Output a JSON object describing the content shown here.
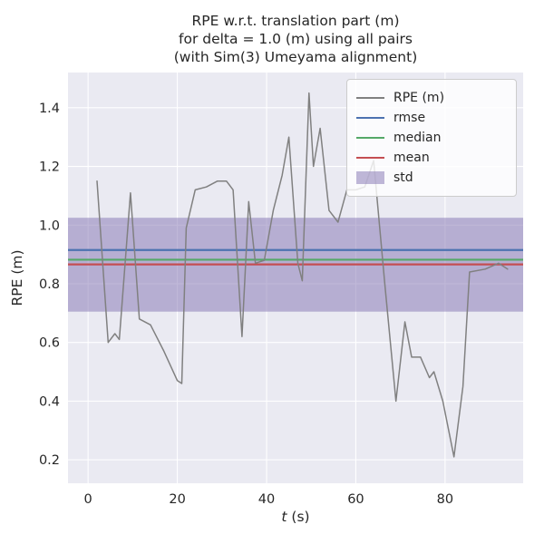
{
  "title": {
    "line1": "RPE w.r.t. translation part (m)",
    "line2": "for delta = 1.0 (m) using all pairs",
    "line3": "(with Sim(3) Umeyama alignment)"
  },
  "chart_data": {
    "type": "line",
    "title": "RPE w.r.t. translation part (m) for delta = 1.0 (m) using all pairs (with Sim(3) Umeyama alignment)",
    "xlabel_italic": "t",
    "xlabel_rest": " (s)",
    "ylabel": "RPE (m)",
    "xlim": [
      -4.5,
      97.5
    ],
    "ylim": [
      0.12,
      1.52
    ],
    "xticks": [
      0,
      20,
      40,
      60,
      80
    ],
    "yticks": [
      0.2,
      0.4,
      0.6,
      0.8,
      1.0,
      1.2,
      1.4
    ],
    "grid": true,
    "legend_position": "upper right",
    "colors": {
      "plot_bg": "#EAEAF2",
      "grid": "#FFFFFF",
      "text": "#262626",
      "rpe_line": "#808080",
      "rmse": "#4C72B0",
      "median": "#55A868",
      "mean": "#C44E52",
      "std": "#8172B2"
    },
    "series": [
      {
        "name": "RPE (m)",
        "color": "#808080",
        "x": [
          2,
          4.5,
          6,
          7,
          9.5,
          11.5,
          14,
          17,
          20,
          21,
          22,
          24,
          26.5,
          29,
          31,
          32.5,
          34.5,
          36,
          37.5,
          39.5,
          41.5,
          43.5,
          45,
          47,
          48,
          49.5,
          50.5,
          52,
          54,
          56,
          58,
          60,
          62,
          64,
          66.5,
          69,
          71,
          72.5,
          74.5,
          76.5,
          77.5,
          79.5,
          82,
          84,
          85.5,
          89,
          92,
          94
        ],
        "y": [
          1.15,
          0.6,
          0.63,
          0.61,
          1.11,
          0.68,
          0.66,
          0.57,
          0.47,
          0.46,
          0.99,
          1.12,
          1.13,
          1.15,
          1.15,
          1.12,
          0.62,
          1.08,
          0.87,
          0.88,
          1.05,
          1.17,
          1.3,
          0.87,
          0.81,
          1.45,
          1.2,
          1.33,
          1.05,
          1.01,
          1.12,
          1.12,
          1.13,
          1.22,
          0.8,
          0.4,
          0.67,
          0.55,
          0.55,
          0.48,
          0.5,
          0.4,
          0.21,
          0.45,
          0.84,
          0.85,
          0.87,
          0.85
        ]
      }
    ],
    "hlines": [
      {
        "name": "rmse",
        "color": "#4C72B0",
        "y": 0.915
      },
      {
        "name": "median",
        "color": "#55A868",
        "y": 0.882
      },
      {
        "name": "mean",
        "color": "#C44E52",
        "y": 0.866
      }
    ],
    "band": {
      "name": "std",
      "color": "#8172B2",
      "alpha": 0.5,
      "ymin": 0.705,
      "ymax": 1.025
    },
    "legend_items": [
      {
        "label": "RPE (m)",
        "type": "line",
        "color": "#808080",
        "alpha": 1
      },
      {
        "label": "rmse",
        "type": "line",
        "color": "#4C72B0",
        "alpha": 1
      },
      {
        "label": "median",
        "type": "line",
        "color": "#55A868",
        "alpha": 1
      },
      {
        "label": "mean",
        "type": "line",
        "color": "#C44E52",
        "alpha": 1
      },
      {
        "label": "std",
        "type": "patch",
        "color": "#8172B2",
        "alpha": 0.5
      }
    ]
  }
}
